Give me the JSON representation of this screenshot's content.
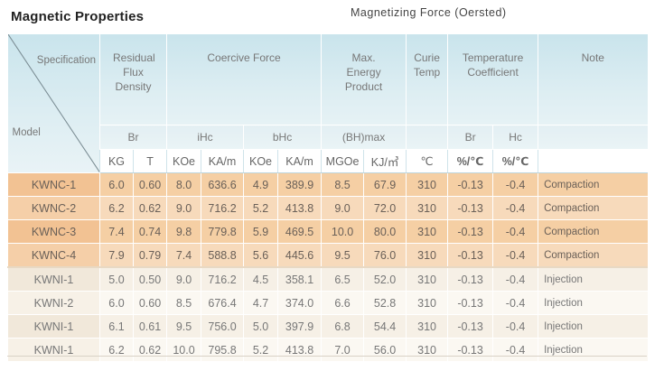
{
  "title": "Magnetic Properties",
  "subtitle": "Magnetizing Force (Oersted)",
  "header": {
    "spec_label": "Specification",
    "model_label": "Model",
    "groups": {
      "residual": "Residual Flux Density",
      "coercive": "Coercive  Force",
      "energy": "Max. Energy Product",
      "curie": "Curie Temp",
      "temp_coeff": "Temperature Coefficient",
      "note": "Note"
    },
    "symbols": {
      "br": "Br",
      "ihc": "iHc",
      "bhc": "bHc",
      "bhmax": "(BH)max",
      "tc_br": "Br",
      "tc_hc": "Hc"
    },
    "units": [
      "KG",
      "T",
      "KOe",
      "KA/m",
      "KOe",
      "KA/m",
      "MGOe",
      "KJ/㎥",
      "℃",
      "%/℃",
      "%/℃"
    ]
  },
  "rows": [
    {
      "model": "KWNC-1",
      "kg": "6.0",
      "t": "0.60",
      "ihc_koe": "8.0",
      "ihc_kam": "636.6",
      "bhc_koe": "4.9",
      "bhc_kam": "389.9",
      "mgoe": "8.5",
      "kj": "67.9",
      "curie": "310",
      "tc_br": "-0.13",
      "tc_hc": "-0.4",
      "note": "Compaction"
    },
    {
      "model": "KWNC-2",
      "kg": "6.2",
      "t": "0.62",
      "ihc_koe": "9.0",
      "ihc_kam": "716.2",
      "bhc_koe": "5.2",
      "bhc_kam": "413.8",
      "mgoe": "9.0",
      "kj": "72.0",
      "curie": "310",
      "tc_br": "-0.13",
      "tc_hc": "-0.4",
      "note": "Compaction"
    },
    {
      "model": "KWNC-3",
      "kg": "7.4",
      "t": "0.74",
      "ihc_koe": "9.8",
      "ihc_kam": "779.8",
      "bhc_koe": "5.9",
      "bhc_kam": "469.5",
      "mgoe": "10.0",
      "kj": "80.0",
      "curie": "310",
      "tc_br": "-0.13",
      "tc_hc": "-0.4",
      "note": "Compaction"
    },
    {
      "model": "KWNC-4",
      "kg": "7.9",
      "t": "0.79",
      "ihc_koe": "7.4",
      "ihc_kam": "588.8",
      "bhc_koe": "5.6",
      "bhc_kam": "445.6",
      "mgoe": "9.5",
      "kj": "76.0",
      "curie": "310",
      "tc_br": "-0.13",
      "tc_hc": "-0.4",
      "note": "Compaction"
    },
    {
      "model": "KWNI-1",
      "kg": "5.0",
      "t": "0.50",
      "ihc_koe": "9.0",
      "ihc_kam": "716.2",
      "bhc_koe": "4.5",
      "bhc_kam": "358.1",
      "mgoe": "6.5",
      "kj": "52.0",
      "curie": "310",
      "tc_br": "-0.13",
      "tc_hc": "-0.4",
      "note": "Injection"
    },
    {
      "model": "KWNI-2",
      "kg": "6.0",
      "t": "0.60",
      "ihc_koe": "8.5",
      "ihc_kam": "676.4",
      "bhc_koe": "4.7",
      "bhc_kam": "374.0",
      "mgoe": "6.6",
      "kj": "52.8",
      "curie": "310",
      "tc_br": "-0.13",
      "tc_hc": "-0.4",
      "note": "Injection"
    },
    {
      "model": "KWNI-1",
      "kg": "6.1",
      "t": "0.61",
      "ihc_koe": "9.5",
      "ihc_kam": "756.0",
      "bhc_koe": "5.0",
      "bhc_kam": "397.9",
      "mgoe": "6.8",
      "kj": "54.4",
      "curie": "310",
      "tc_br": "-0.13",
      "tc_hc": "-0.4",
      "note": "Injection"
    },
    {
      "model": "KWNI-1",
      "kg": "6.2",
      "t": "0.62",
      "ihc_koe": "10.0",
      "ihc_kam": "795.8",
      "bhc_koe": "5.2",
      "bhc_kam": "413.8",
      "mgoe": "7.0",
      "kj": "56.0",
      "curie": "310",
      "tc_br": "-0.13",
      "tc_hc": "-0.4",
      "note": "Injection"
    }
  ]
}
